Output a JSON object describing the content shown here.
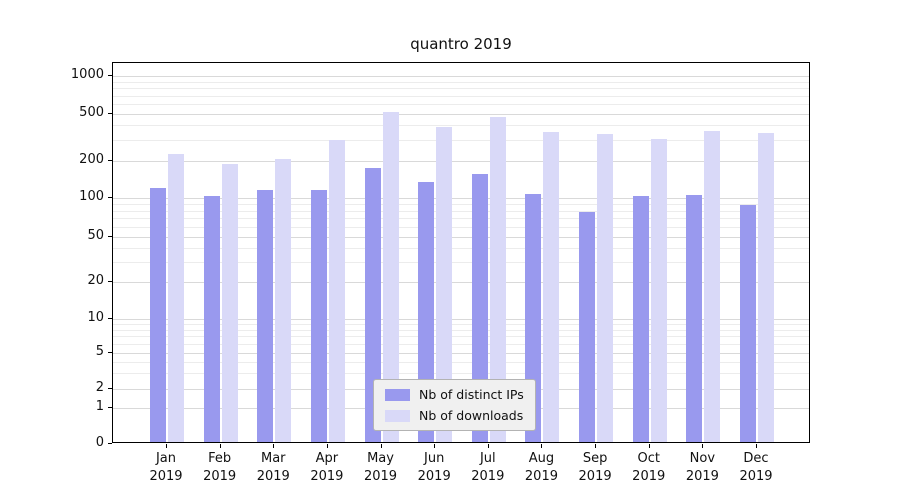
{
  "chart_data": {
    "type": "bar",
    "title": "quantro 2019",
    "categories": [
      "Jan",
      "Feb",
      "Mar",
      "Apr",
      "May",
      "Jun",
      "Jul",
      "Aug",
      "Sep",
      "Oct",
      "Nov",
      "Dec"
    ],
    "year": "2019",
    "series": [
      {
        "name": "Nb of distinct IPs",
        "color": "#9999ee",
        "values": [
          115,
          100,
          112,
          112,
          170,
          130,
          150,
          103,
          75,
          99,
          102,
          85
        ]
      },
      {
        "name": "Nb of downloads",
        "color": "#d9d9f8",
        "values": [
          220,
          182,
          198,
          290,
          500,
          372,
          450,
          340,
          325,
          293,
          345,
          335
        ]
      }
    ],
    "y_ticks": [
      0,
      1,
      2,
      5,
      10,
      20,
      50,
      100,
      200,
      500,
      1000
    ],
    "y_minor_ticks": [
      3,
      4,
      6,
      7,
      8,
      9,
      30,
      40,
      60,
      70,
      80,
      90,
      300,
      400,
      600,
      700,
      800,
      900
    ],
    "y_scale": "log-like",
    "grid": true,
    "legend_position": "lower center"
  }
}
